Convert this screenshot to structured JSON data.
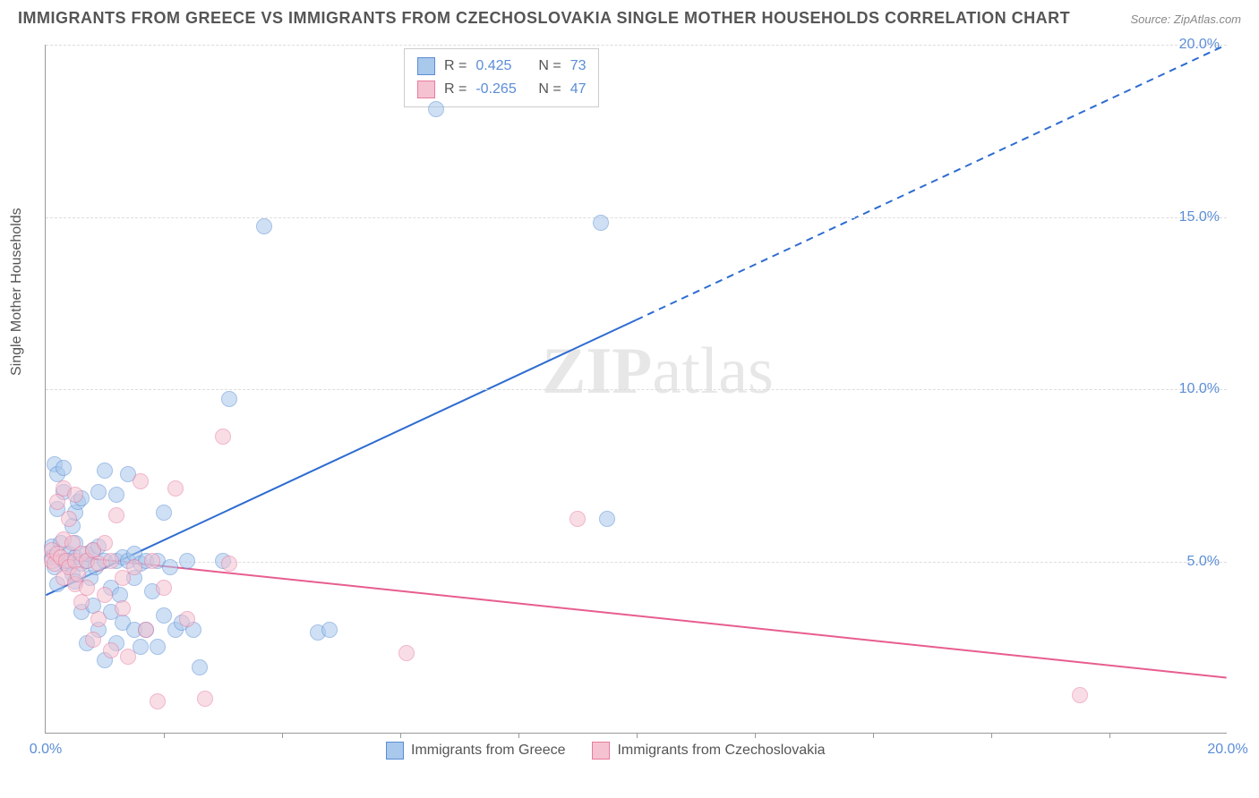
{
  "title": "IMMIGRANTS FROM GREECE VS IMMIGRANTS FROM CZECHOSLOVAKIA SINGLE MOTHER HOUSEHOLDS CORRELATION CHART",
  "source": "Source: ZipAtlas.com",
  "ylabel": "Single Mother Households",
  "watermark_a": "ZIP",
  "watermark_b": "atlas",
  "chart": {
    "type": "scatter",
    "xlim": [
      0,
      20
    ],
    "ylim": [
      0,
      20
    ],
    "x_tick_label_min": "0.0%",
    "x_tick_label_max": "20.0%",
    "x_minor_ticks": [
      2,
      4,
      6,
      8,
      10,
      12,
      14,
      16,
      18
    ],
    "y_gridlines": [
      5,
      10,
      15,
      20
    ],
    "y_tick_labels": [
      "5.0%",
      "10.0%",
      "15.0%",
      "20.0%"
    ],
    "grid_color": "#dddddd",
    "axis_color": "#999999",
    "background_color": "#ffffff",
    "point_radius": 9,
    "point_opacity": 0.55,
    "series": [
      {
        "name": "Immigrants from Greece",
        "color_fill": "#a8c8ec",
        "color_stroke": "#5b8dd6",
        "R": "0.425",
        "N": "73",
        "trend": {
          "x1": 0,
          "y1": 4.0,
          "x2": 10,
          "y2": 12.0,
          "dash_x2": 20,
          "dash_y2": 20.0,
          "color": "#2e6cd1",
          "width": 2
        },
        "points": [
          [
            0.1,
            5.1
          ],
          [
            0.1,
            5.4
          ],
          [
            0.15,
            4.8
          ],
          [
            0.15,
            7.8
          ],
          [
            0.2,
            4.3
          ],
          [
            0.2,
            6.5
          ],
          [
            0.2,
            7.5
          ],
          [
            0.25,
            5.5
          ],
          [
            0.3,
            5.0
          ],
          [
            0.3,
            7.0
          ],
          [
            0.3,
            7.7
          ],
          [
            0.35,
            4.9
          ],
          [
            0.4,
            5.0
          ],
          [
            0.4,
            5.2
          ],
          [
            0.45,
            4.6
          ],
          [
            0.45,
            6.0
          ],
          [
            0.5,
            5.1
          ],
          [
            0.5,
            5.5
          ],
          [
            0.5,
            4.4
          ],
          [
            0.5,
            6.4
          ],
          [
            0.55,
            6.7
          ],
          [
            0.6,
            4.9
          ],
          [
            0.6,
            3.5
          ],
          [
            0.6,
            6.8
          ],
          [
            0.7,
            5.0
          ],
          [
            0.7,
            2.6
          ],
          [
            0.7,
            5.2
          ],
          [
            0.75,
            4.5
          ],
          [
            0.8,
            5.3
          ],
          [
            0.8,
            3.7
          ],
          [
            0.85,
            4.8
          ],
          [
            0.9,
            3.0
          ],
          [
            0.9,
            5.4
          ],
          [
            0.9,
            7.0
          ],
          [
            1.0,
            5.0
          ],
          [
            1.0,
            2.1
          ],
          [
            1.0,
            7.6
          ],
          [
            1.1,
            4.2
          ],
          [
            1.1,
            3.5
          ],
          [
            1.2,
            5.0
          ],
          [
            1.2,
            2.6
          ],
          [
            1.2,
            6.9
          ],
          [
            1.25,
            4.0
          ],
          [
            1.3,
            3.2
          ],
          [
            1.3,
            5.1
          ],
          [
            1.4,
            5.0
          ],
          [
            1.4,
            7.5
          ],
          [
            1.5,
            4.5
          ],
          [
            1.5,
            3.0
          ],
          [
            1.5,
            5.2
          ],
          [
            1.6,
            2.5
          ],
          [
            1.6,
            4.9
          ],
          [
            1.7,
            3.0
          ],
          [
            1.7,
            5.0
          ],
          [
            1.8,
            4.1
          ],
          [
            1.9,
            2.5
          ],
          [
            1.9,
            5.0
          ],
          [
            2.0,
            3.4
          ],
          [
            2.0,
            6.4
          ],
          [
            2.1,
            4.8
          ],
          [
            2.2,
            3.0
          ],
          [
            2.3,
            3.2
          ],
          [
            2.4,
            5.0
          ],
          [
            2.5,
            3.0
          ],
          [
            2.6,
            1.9
          ],
          [
            3.0,
            5.0
          ],
          [
            3.1,
            9.7
          ],
          [
            3.7,
            14.7
          ],
          [
            4.6,
            2.9
          ],
          [
            4.8,
            3.0
          ],
          [
            6.6,
            18.1
          ],
          [
            9.4,
            14.8
          ],
          [
            9.5,
            6.2
          ]
        ]
      },
      {
        "name": "Immigrants from Czechoslovakia",
        "color_fill": "#f4c2d0",
        "color_stroke": "#e87ba0",
        "R": "-0.265",
        "N": "47",
        "trend": {
          "x1": 0,
          "y1": 5.2,
          "x2": 20,
          "y2": 1.6,
          "color": "#e75d8f",
          "width": 2
        },
        "points": [
          [
            0.1,
            5.0
          ],
          [
            0.1,
            5.3
          ],
          [
            0.15,
            4.9
          ],
          [
            0.2,
            5.2
          ],
          [
            0.2,
            6.7
          ],
          [
            0.25,
            5.1
          ],
          [
            0.3,
            4.5
          ],
          [
            0.3,
            5.6
          ],
          [
            0.3,
            7.1
          ],
          [
            0.35,
            5.0
          ],
          [
            0.4,
            6.2
          ],
          [
            0.4,
            4.8
          ],
          [
            0.45,
            5.5
          ],
          [
            0.5,
            4.3
          ],
          [
            0.5,
            5.0
          ],
          [
            0.5,
            6.9
          ],
          [
            0.55,
            4.6
          ],
          [
            0.6,
            5.2
          ],
          [
            0.6,
            3.8
          ],
          [
            0.7,
            5.0
          ],
          [
            0.7,
            4.2
          ],
          [
            0.8,
            5.3
          ],
          [
            0.8,
            2.7
          ],
          [
            0.9,
            4.9
          ],
          [
            0.9,
            3.3
          ],
          [
            1.0,
            5.5
          ],
          [
            1.0,
            4.0
          ],
          [
            1.1,
            5.0
          ],
          [
            1.1,
            2.4
          ],
          [
            1.2,
            6.3
          ],
          [
            1.3,
            3.6
          ],
          [
            1.3,
            4.5
          ],
          [
            1.4,
            2.2
          ],
          [
            1.5,
            4.8
          ],
          [
            1.6,
            7.3
          ],
          [
            1.7,
            3.0
          ],
          [
            1.8,
            5.0
          ],
          [
            1.9,
            0.9
          ],
          [
            2.0,
            4.2
          ],
          [
            2.2,
            7.1
          ],
          [
            2.4,
            3.3
          ],
          [
            2.7,
            1.0
          ],
          [
            3.0,
            8.6
          ],
          [
            3.1,
            4.9
          ],
          [
            6.1,
            2.3
          ],
          [
            9.0,
            6.2
          ],
          [
            17.5,
            1.1
          ]
        ]
      }
    ]
  },
  "legend_stats": {
    "r_label": "R =",
    "n_label": "N ="
  },
  "bottom_legend": {
    "series1": "Immigrants from Greece",
    "series2": "Immigrants from Czechoslovakia"
  }
}
